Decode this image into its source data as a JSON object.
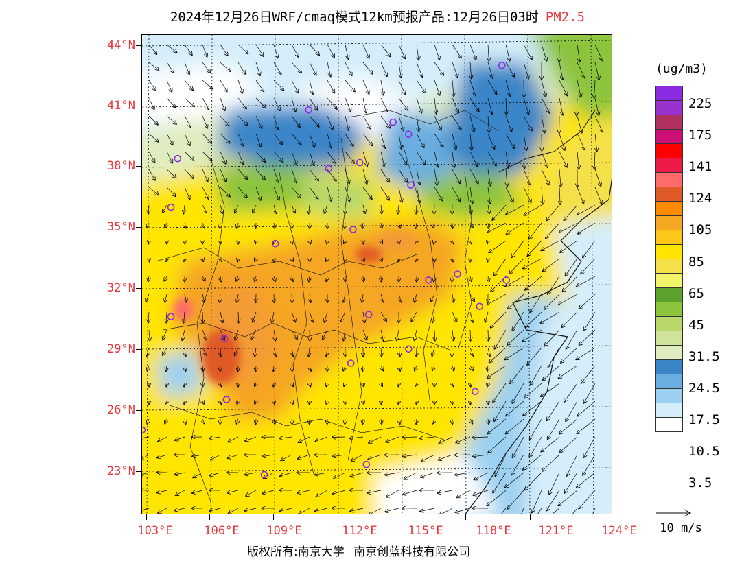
{
  "title": {
    "main": "2024年12月26日WRF/cmaq模式12km预报产品:12月26日03时",
    "pollutant": "PM2.5"
  },
  "axes": {
    "lat_labels": [
      "44°N",
      "41°N",
      "38°N",
      "35°N",
      "32°N",
      "29°N",
      "26°N",
      "23°N"
    ],
    "lon_labels": [
      "103°E",
      "106°E",
      "109°E",
      "112°E",
      "115°E",
      "118°E",
      "121°E",
      "124°E"
    ],
    "lat_range": [
      20.8,
      44.5
    ],
    "lon_range": [
      102.8,
      124.0
    ]
  },
  "legend": {
    "unit": "(ug/m3)",
    "colors": [
      "#8a2be2",
      "#9a32cd",
      "#b03060",
      "#cd1076",
      "#ff0000",
      "#ee1a4a",
      "#ff6a6a",
      "#e05a28",
      "#ff8c00",
      "#f5a623",
      "#ffc61a",
      "#ffe500",
      "#f5e04a",
      "#f0f56a",
      "#5ea22e",
      "#8cc43c",
      "#b8d86a",
      "#cfe49a",
      "#e0edc0",
      "#3a86c8",
      "#6aaee0",
      "#9cd0f0",
      "#d6eefa",
      "#ffffff"
    ],
    "labels": [
      "225",
      "175",
      "141",
      "124",
      "105",
      "85",
      "65",
      "45",
      "31.5",
      "24.5",
      "17.5",
      "10.5",
      "3.5"
    ]
  },
  "wind_reference": {
    "label": "10 m/s"
  },
  "cities": [
    {
      "lon": 119.0,
      "lat": 43.0
    },
    {
      "lon": 110.3,
      "lat": 40.8
    },
    {
      "lon": 114.1,
      "lat": 40.2
    },
    {
      "lon": 114.8,
      "lat": 39.6
    },
    {
      "lon": 104.4,
      "lat": 38.4
    },
    {
      "lon": 111.2,
      "lat": 37.9
    },
    {
      "lon": 112.6,
      "lat": 38.2
    },
    {
      "lon": 114.9,
      "lat": 37.1
    },
    {
      "lon": 104.1,
      "lat": 36.0
    },
    {
      "lon": 112.3,
      "lat": 34.9
    },
    {
      "lon": 108.8,
      "lat": 34.2
    },
    {
      "lon": 115.7,
      "lat": 32.4
    },
    {
      "lon": 117.0,
      "lat": 32.7
    },
    {
      "lon": 119.2,
      "lat": 32.4
    },
    {
      "lon": 104.1,
      "lat": 30.6
    },
    {
      "lon": 113.0,
      "lat": 30.7
    },
    {
      "lon": 118.0,
      "lat": 31.1
    },
    {
      "lon": 106.5,
      "lat": 29.5
    },
    {
      "lon": 112.2,
      "lat": 28.3
    },
    {
      "lon": 114.8,
      "lat": 29.0
    },
    {
      "lon": 106.6,
      "lat": 26.5
    },
    {
      "lon": 117.8,
      "lat": 26.9
    },
    {
      "lon": 102.8,
      "lat": 25.0
    },
    {
      "lon": 108.3,
      "lat": 22.8
    },
    {
      "lon": 112.9,
      "lat": 23.3
    }
  ],
  "copyright": {
    "left": "版权所有:南京大学",
    "right": "南京创蓝科技有限公司"
  }
}
